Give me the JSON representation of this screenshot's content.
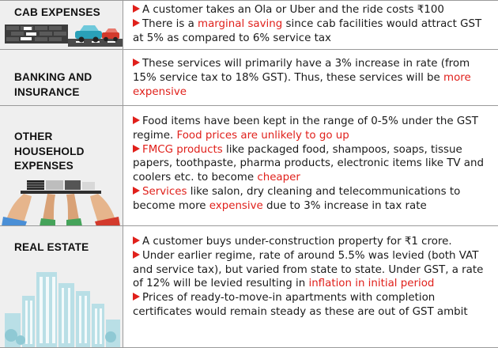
{
  "rows": [
    {
      "title": "CAB EXPENSES",
      "items": [
        [
          {
            "t": "A customer takes an Ola or Uber and the ride costs ₹100"
          }
        ],
        [
          {
            "t": "There is a "
          },
          {
            "t": "marginal saving",
            "hl": true
          },
          {
            "t": " since cab facilities would attract GST at 5% as compared to 6% service tax"
          }
        ]
      ]
    },
    {
      "title": "BANKING AND INSURANCE",
      "items": [
        [
          {
            "t": "These services will primarily have a 3% increase in rate (from 15% service tax to 18% GST). Thus, these services will be "
          },
          {
            "t": "more expensive",
            "hl": true
          }
        ]
      ]
    },
    {
      "title": "OTHER HOUSEHOLD EXPENSES",
      "items": [
        [
          {
            "t": "Food items have been kept in the range of 0-5% under the GST regime. "
          },
          {
            "t": "Food prices are unlikely to go up",
            "hl": true
          }
        ],
        [
          {
            "t": "FMCG products",
            "hl": true
          },
          {
            "t": " like packaged food, shampoos, soaps, tissue papers, toothpaste, pharma products, electronic items like TV and coolers etc. to become "
          },
          {
            "t": "cheaper",
            "hl": true
          }
        ],
        [
          {
            "t": "Services",
            "hl": true
          },
          {
            "t": " like salon, dry cleaning and telecommunications to become more "
          },
          {
            "t": "expensive",
            "hl": true
          },
          {
            "t": " due to 3% increase in tax rate"
          }
        ]
      ]
    },
    {
      "title": "REAL ESTATE",
      "items": [
        [
          {
            "t": "A customer buys under-construction property for ₹1 crore."
          }
        ],
        [
          {
            "t": "Under earlier regime, rate of around 5.5% was levied (both VAT and service tax), but varied from state to state. Under GST, a rate of 12% will be levied resulting in "
          },
          {
            "t": "inflation in initial period",
            "hl": true
          }
        ],
        [
          {
            "t": "Prices of ready-to-move-in apartments with completion certificates would remain steady as these are out of GST ambit"
          }
        ]
      ]
    }
  ],
  "illustrations": [
    "cab-road-illustration",
    "hands-tray-illustration",
    "city-buildings-illustration"
  ],
  "colors": {
    "highlight": "#e0201b",
    "label_bg": "#efefef",
    "rule": "#9a9a9a"
  }
}
